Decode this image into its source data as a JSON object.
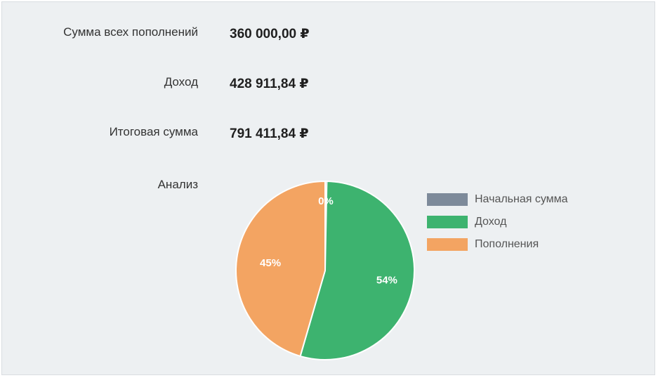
{
  "summary": {
    "total_deposits_label": "Сумма всех пополнений",
    "total_deposits_value": "360 000,00 ₽",
    "income_label": "Доход",
    "income_value": "428 911,84 ₽",
    "final_sum_label": "Итоговая сумма",
    "final_sum_value": "791 411,84 ₽",
    "analysis_label": "Анализ"
  },
  "colors": {
    "initial": "#7d8a9a",
    "income": "#3db36f",
    "deposits": "#f3a462"
  },
  "chart_data": {
    "type": "pie",
    "categories": [
      "Начальная сумма",
      "Доход",
      "Пополнения"
    ],
    "values": [
      0.3,
      54.2,
      45.5
    ],
    "data_labels": [
      "0%",
      "54%",
      "45%"
    ],
    "legend_position": "right"
  }
}
